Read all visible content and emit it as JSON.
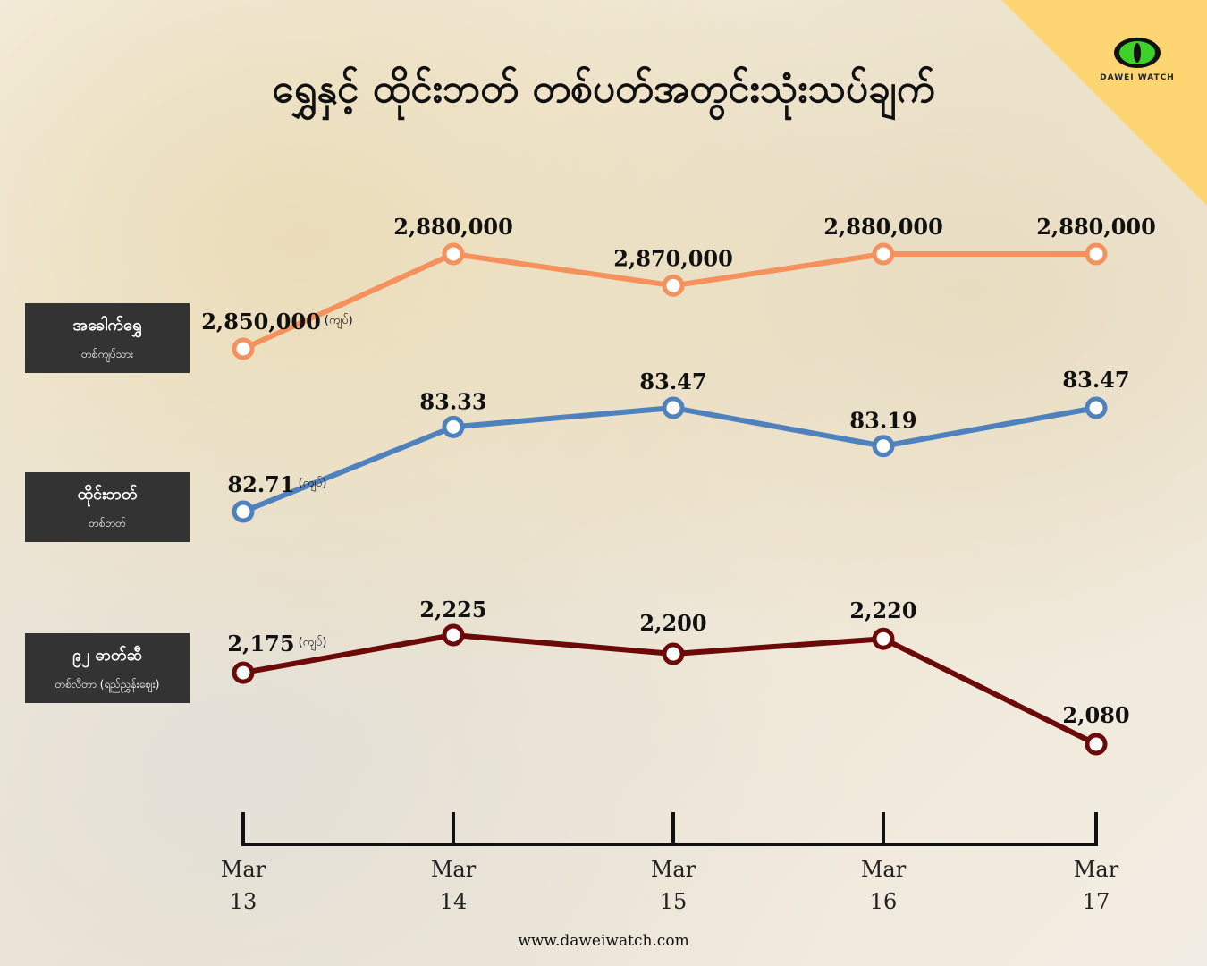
{
  "title": "ရွှေနှင့် ထိုင်းဘတ် တစ်ပတ်အတွင်းသုံးသပ်ချက်",
  "logo": {
    "text": "DAWEI WATCH",
    "icon": "eye-icon"
  },
  "footer": "www.daweiwatch.com",
  "series_labels": [
    {
      "name": "အခေါက်ရွှေ",
      "sub": "တစ်ကျပ်သား"
    },
    {
      "name": "ထိုင်းဘတ်",
      "sub": "တစ်ဘတ်"
    },
    {
      "name": "၉၂ ဓာတ်ဆီ",
      "sub": "တစ်လီတာ (ရည်ညွှန်းဈေး)"
    }
  ],
  "chart_data": {
    "type": "line",
    "x_months": [
      "Mar",
      "Mar",
      "Mar",
      "Mar",
      "Mar"
    ],
    "x_days": [
      "13",
      "14",
      "15",
      "16",
      "17"
    ],
    "unit_note": "(ကျပ်)",
    "series": [
      {
        "name": "အခေါက်ရွှေ",
        "color": "#f4915c",
        "values": [
          2850000,
          2880000,
          2870000,
          2880000,
          2880000
        ],
        "labels": [
          "2,850,000",
          "2,880,000",
          "2,870,000",
          "2,880,000",
          "2,880,000"
        ]
      },
      {
        "name": "ထိုင်းဘတ်",
        "color": "#4f81bd",
        "values": [
          82.71,
          83.33,
          83.47,
          83.19,
          83.47
        ],
        "labels": [
          "82.71",
          "83.33",
          "83.47",
          "83.19",
          "83.47"
        ]
      },
      {
        "name": "၉၂ ဓာတ်ဆီ",
        "color": "#6b0a08",
        "values": [
          2175,
          2225,
          2200,
          2220,
          2080
        ],
        "labels": [
          "2,175",
          "2,225",
          "2,200",
          "2,220",
          "2,080"
        ]
      }
    ]
  }
}
